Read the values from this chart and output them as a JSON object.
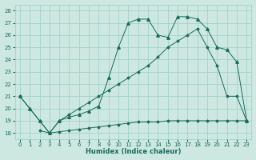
{
  "xlabel": "Humidex (Indice chaleur)",
  "xlim": [
    -0.5,
    23.5
  ],
  "ylim": [
    17.5,
    28.5
  ],
  "yticks": [
    18,
    19,
    20,
    21,
    22,
    23,
    24,
    25,
    26,
    27,
    28
  ],
  "xticks": [
    0,
    1,
    2,
    3,
    4,
    5,
    6,
    7,
    8,
    9,
    10,
    11,
    12,
    13,
    14,
    15,
    16,
    17,
    18,
    19,
    20,
    21,
    22,
    23
  ],
  "bg_color": "#cce8e0",
  "grid_color": "#99cec4",
  "line_color": "#1a6b5a",
  "line1_x": [
    0,
    1,
    2,
    3,
    4,
    5,
    6,
    7,
    8,
    9,
    10,
    11,
    12,
    13,
    14,
    15,
    16,
    17,
    18,
    19,
    20,
    21,
    22,
    23
  ],
  "line1_y": [
    21.0,
    20.0,
    19.0,
    18.0,
    19.0,
    19.5,
    20.0,
    20.5,
    21.0,
    21.5,
    22.0,
    22.5,
    23.0,
    23.5,
    24.2,
    25.0,
    25.5,
    26.0,
    26.5,
    25.0,
    23.5,
    21.0,
    21.0,
    19.0
  ],
  "line2_x": [
    0,
    1,
    2,
    3,
    4,
    5,
    6,
    7,
    8,
    9,
    10,
    11,
    12,
    13,
    14,
    15,
    16,
    17,
    18,
    19,
    20,
    21,
    22,
    23
  ],
  "line2_y": [
    21.0,
    20.0,
    19.0,
    18.0,
    19.0,
    19.3,
    19.5,
    19.8,
    20.2,
    22.5,
    25.0,
    27.0,
    27.3,
    27.3,
    26.0,
    25.8,
    27.5,
    27.5,
    27.3,
    26.5,
    25.0,
    24.8,
    23.8,
    19.0
  ],
  "line3_x": [
    2,
    3,
    4,
    5,
    6,
    7,
    8,
    9,
    10,
    11,
    12,
    13,
    14,
    15,
    16,
    17,
    18,
    19,
    20,
    21,
    22,
    23
  ],
  "line3_y": [
    18.2,
    18.0,
    18.1,
    18.2,
    18.3,
    18.4,
    18.5,
    18.6,
    18.7,
    18.8,
    18.9,
    18.9,
    18.9,
    19.0,
    19.0,
    19.0,
    19.0,
    19.0,
    19.0,
    19.0,
    19.0,
    19.0
  ]
}
